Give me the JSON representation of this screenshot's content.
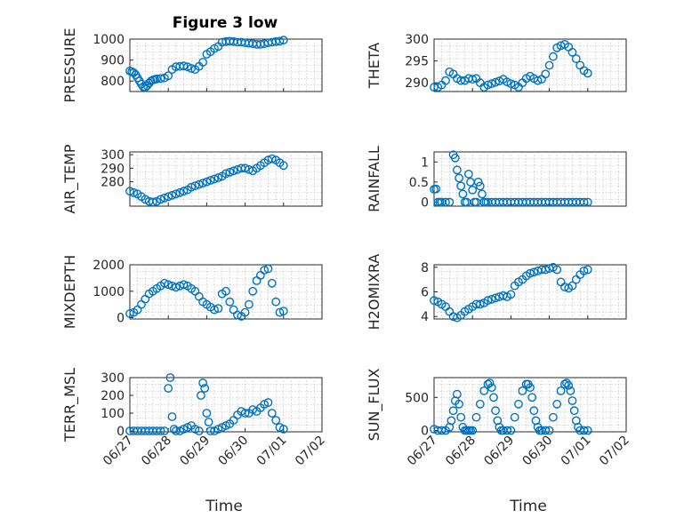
{
  "chart_data": {
    "type": "scatter",
    "marker": "circle-open",
    "color": "#0072BD",
    "title": "Figure 3 low",
    "xlabel": "Time",
    "x_ticks": [
      "06/27",
      "06/28",
      "06/29",
      "06/30",
      "07/01",
      "07/02"
    ],
    "xlim": [
      0,
      5
    ],
    "grid": "minor-dotted",
    "subplots": [
      {
        "id": "pressure",
        "ylabel": "PRESSURE",
        "ylim": [
          750,
          1000
        ],
        "yticks": [
          800,
          900,
          1000
        ],
        "series": {
          "x": [
            0,
            0.05,
            0.1,
            0.15,
            0.2,
            0.25,
            0.3,
            0.35,
            0.4,
            0.45,
            0.5,
            0.55,
            0.6,
            0.65,
            0.7,
            0.8,
            0.9,
            1,
            1.1,
            1.2,
            1.3,
            1.4,
            1.5,
            1.6,
            1.7,
            1.8,
            1.9,
            2,
            2.1,
            2.2,
            2.3,
            2.4,
            2.5,
            2.6,
            2.7,
            2.8,
            2.9,
            3,
            3.1,
            3.2,
            3.3,
            3.4,
            3.5,
            3.6,
            3.7,
            3.8,
            3.9,
            4
          ],
          "y": [
            848,
            845,
            840,
            830,
            815,
            800,
            785,
            772,
            770,
            778,
            790,
            800,
            805,
            808,
            810,
            812,
            815,
            825,
            855,
            868,
            870,
            872,
            868,
            860,
            855,
            870,
            890,
            928,
            940,
            955,
            965,
            985,
            988,
            990,
            988,
            985,
            985,
            982,
            980,
            978,
            975,
            975,
            978,
            982,
            985,
            988,
            990,
            995
          ]
        }
      },
      {
        "id": "theta",
        "ylabel": "THETA",
        "ylim": [
          288,
          300
        ],
        "yticks": [
          290,
          295,
          300
        ],
        "series": {
          "x": [
            0,
            0.1,
            0.2,
            0.3,
            0.4,
            0.5,
            0.6,
            0.7,
            0.8,
            0.9,
            1,
            1.1,
            1.2,
            1.3,
            1.4,
            1.5,
            1.6,
            1.7,
            1.8,
            1.9,
            2,
            2.1,
            2.2,
            2.3,
            2.4,
            2.5,
            2.6,
            2.7,
            2.8,
            2.9,
            3,
            3.1,
            3.2,
            3.3,
            3.4,
            3.5,
            3.6,
            3.7,
            3.8,
            3.9,
            4
          ],
          "y": [
            289,
            289,
            289.5,
            290.5,
            292.5,
            292,
            291,
            290.5,
            290.5,
            291,
            290.8,
            291,
            290,
            289,
            289.5,
            289.8,
            290.1,
            290.4,
            290.8,
            290.2,
            289.8,
            289.5,
            289,
            290,
            291,
            291.5,
            291,
            290.5,
            290.8,
            292,
            294,
            296,
            298,
            298.5,
            298.8,
            298.2,
            297,
            295.5,
            294,
            292.8,
            292.2
          ]
        }
      },
      {
        "id": "air_temp",
        "ylabel": "AIR_TEMP",
        "ylim": [
          262,
          302
        ],
        "yticks": [
          280,
          290,
          300
        ],
        "series": {
          "x": [
            0,
            0.1,
            0.2,
            0.3,
            0.4,
            0.5,
            0.6,
            0.7,
            0.8,
            0.9,
            1,
            1.1,
            1.2,
            1.3,
            1.4,
            1.5,
            1.6,
            1.7,
            1.8,
            1.9,
            2,
            2.1,
            2.2,
            2.3,
            2.4,
            2.5,
            2.6,
            2.7,
            2.8,
            2.9,
            3,
            3.1,
            3.2,
            3.3,
            3.4,
            3.5,
            3.6,
            3.7,
            3.8,
            3.9,
            4
          ],
          "y": [
            273,
            272,
            271,
            269,
            267,
            265.5,
            265,
            265.5,
            267,
            268,
            269,
            270,
            271,
            272,
            273,
            274,
            276,
            277,
            278,
            279,
            280,
            281,
            282,
            283,
            284,
            286,
            287,
            288,
            289,
            290,
            290,
            289,
            288,
            290,
            292,
            294,
            296,
            297,
            296,
            294,
            292
          ]
        }
      },
      {
        "id": "rainfall",
        "ylabel": "RAINFALL",
        "ylim": [
          -0.1,
          1.25
        ],
        "yticks": [
          0,
          0.5,
          1
        ],
        "series": {
          "x": [
            0,
            0.05,
            0.1,
            0.15,
            0.2,
            0.3,
            0.4,
            0.5,
            0.55,
            0.6,
            0.65,
            0.7,
            0.75,
            0.8,
            0.85,
            0.9,
            0.95,
            1,
            1.05,
            1.1,
            1.15,
            1.2,
            1.25,
            1.3,
            1.35,
            1.4,
            1.5,
            1.6,
            1.7,
            1.8,
            1.9,
            2,
            2.1,
            2.2,
            2.3,
            2.4,
            2.5,
            2.6,
            2.7,
            2.8,
            2.9,
            3,
            3.1,
            3.2,
            3.3,
            3.4,
            3.5,
            3.6,
            3.7,
            3.8,
            3.9,
            4
          ],
          "y": [
            0.32,
            0.33,
            0,
            0,
            0,
            0,
            0,
            1.18,
            1.1,
            0.8,
            0.6,
            0.4,
            0.2,
            0,
            0,
            0.7,
            0.5,
            0.3,
            0,
            0,
            0.5,
            0.4,
            0.2,
            0,
            0,
            0,
            0,
            0,
            0,
            0,
            0,
            0,
            0,
            0,
            0,
            0,
            0,
            0,
            0,
            0,
            0,
            0,
            0,
            0,
            0,
            0,
            0,
            0,
            0,
            0,
            0,
            0
          ]
        }
      },
      {
        "id": "mixdepth",
        "ylabel": "MIXDEPTH",
        "ylim": [
          -50,
          2000
        ],
        "yticks": [
          0,
          1000,
          2000
        ],
        "series": {
          "x": [
            0,
            0.1,
            0.2,
            0.3,
            0.4,
            0.5,
            0.6,
            0.7,
            0.8,
            0.9,
            1,
            1.1,
            1.2,
            1.3,
            1.4,
            1.5,
            1.6,
            1.7,
            1.8,
            1.9,
            2,
            2.1,
            2.2,
            2.3,
            2.4,
            2.5,
            2.6,
            2.7,
            2.8,
            2.9,
            3,
            3.1,
            3.2,
            3.3,
            3.4,
            3.5,
            3.6,
            3.7,
            3.8,
            3.9,
            4
          ],
          "y": [
            150,
            200,
            300,
            500,
            700,
            900,
            1000,
            1100,
            1200,
            1300,
            1250,
            1200,
            1150,
            1200,
            1250,
            1200,
            1100,
            1000,
            800,
            600,
            500,
            400,
            300,
            350,
            900,
            1000,
            600,
            300,
            100,
            50,
            200,
            500,
            1000,
            1400,
            1600,
            1800,
            1850,
            1300,
            600,
            200,
            250
          ]
        }
      },
      {
        "id": "h2omixra",
        "ylabel": "H2OMIXRA",
        "ylim": [
          3.8,
          8.2
        ],
        "yticks": [
          4,
          6,
          8
        ],
        "series": {
          "x": [
            0,
            0.1,
            0.2,
            0.3,
            0.4,
            0.5,
            0.6,
            0.7,
            0.8,
            0.9,
            1,
            1.1,
            1.2,
            1.3,
            1.4,
            1.5,
            1.6,
            1.7,
            1.8,
            1.9,
            2,
            2.1,
            2.2,
            2.3,
            2.4,
            2.5,
            2.6,
            2.7,
            2.8,
            2.9,
            3,
            3.1,
            3.2,
            3.3,
            3.4,
            3.5,
            3.6,
            3.7,
            3.8,
            3.9,
            4
          ],
          "y": [
            5.3,
            5.2,
            5,
            4.8,
            4.4,
            4,
            3.9,
            4.1,
            4.4,
            4.6,
            4.8,
            5,
            5,
            5.1,
            5.3,
            5.4,
            5.5,
            5.6,
            5.7,
            5.6,
            5.8,
            6.5,
            6.8,
            7,
            7.3,
            7.5,
            7.6,
            7.7,
            7.8,
            7.8,
            7.9,
            8,
            7.8,
            6.8,
            6.4,
            6.3,
            6.5,
            7,
            7.4,
            7.7,
            7.8
          ]
        }
      },
      {
        "id": "terr_msl",
        "ylabel": "TERR_MSL",
        "ylim": [
          -5,
          300
        ],
        "yticks": [
          0,
          100,
          200,
          300
        ],
        "series": {
          "x": [
            0,
            0.1,
            0.2,
            0.3,
            0.4,
            0.5,
            0.6,
            0.7,
            0.8,
            0.9,
            1,
            1.05,
            1.1,
            1.15,
            1.2,
            1.3,
            1.4,
            1.5,
            1.6,
            1.7,
            1.8,
            1.85,
            1.9,
            1.95,
            2,
            2.05,
            2.1,
            2.2,
            2.3,
            2.4,
            2.5,
            2.6,
            2.7,
            2.8,
            2.9,
            3,
            3.1,
            3.2,
            3.3,
            3.4,
            3.5,
            3.6,
            3.7,
            3.8,
            3.9,
            4
          ],
          "y": [
            0,
            0,
            0,
            0,
            0,
            0,
            0,
            0,
            0,
            0,
            240,
            300,
            80,
            10,
            0,
            0,
            10,
            20,
            30,
            10,
            0,
            200,
            270,
            240,
            100,
            50,
            0,
            0,
            10,
            20,
            30,
            40,
            60,
            90,
            110,
            100,
            100,
            120,
            110,
            130,
            150,
            160,
            100,
            60,
            20,
            10
          ]
        }
      },
      {
        "id": "sun_flux",
        "ylabel": "SUN_FLUX",
        "ylim": [
          -20,
          800
        ],
        "yticks": [
          0,
          500
        ],
        "series": {
          "x": [
            0,
            0.1,
            0.2,
            0.3,
            0.4,
            0.45,
            0.5,
            0.55,
            0.6,
            0.65,
            0.7,
            0.75,
            0.8,
            0.85,
            0.9,
            0.95,
            1,
            1.1,
            1.2,
            1.3,
            1.4,
            1.45,
            1.5,
            1.55,
            1.6,
            1.65,
            1.7,
            1.75,
            1.8,
            1.9,
            2,
            2.1,
            2.2,
            2.3,
            2.4,
            2.45,
            2.5,
            2.55,
            2.6,
            2.65,
            2.7,
            2.75,
            2.8,
            2.9,
            3,
            3.1,
            3.2,
            3.3,
            3.4,
            3.45,
            3.5,
            3.55,
            3.6,
            3.65,
            3.7,
            3.75,
            3.8,
            3.9,
            4
          ],
          "y": [
            20,
            0,
            0,
            0,
            50,
            150,
            300,
            450,
            550,
            400,
            200,
            50,
            0,
            0,
            0,
            0,
            0,
            200,
            400,
            600,
            700,
            720,
            650,
            500,
            300,
            150,
            50,
            0,
            0,
            0,
            0,
            200,
            400,
            600,
            700,
            700,
            650,
            500,
            300,
            150,
            50,
            0,
            0,
            0,
            0,
            200,
            400,
            600,
            700,
            720,
            680,
            600,
            450,
            300,
            150,
            50,
            0,
            0,
            0
          ]
        }
      }
    ]
  }
}
